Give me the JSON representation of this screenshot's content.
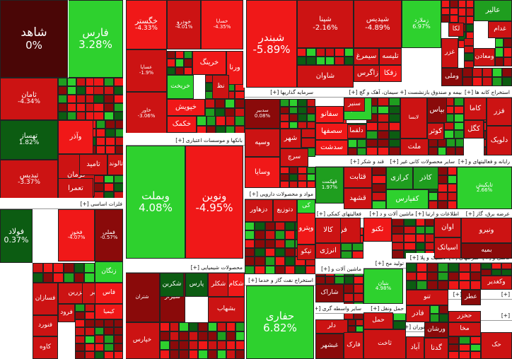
{
  "colors": {
    "bright_green": "#2ed12e",
    "green": "#1f9e1f",
    "dark_green": "#0c5c12",
    "bright_red": "#f01818",
    "red": "#cc1313",
    "dark_red": "#8a0a0a",
    "neutral": "#4a0606"
  },
  "sections": [
    {
      "id": "s-financial",
      "title": "فلزات اساسی [+]",
      "subs": []
    },
    {
      "id": "s-banks",
      "title": "بانکها و موسسات اعتباری [+]"
    },
    {
      "id": "s-chemical",
      "title": "محصولات شیمیایی [+]"
    },
    {
      "id": "s-invest",
      "title": "سرمایه گذاریها [+]"
    },
    {
      "id": "s-pharma",
      "title": "مواد و محصولات دارویی [+]"
    },
    {
      "id": "s-oil",
      "title": "استخراج نفت گاز و خدما [+]"
    },
    {
      "id": "s-cement",
      "title": "سیمان، آهک و گچ [+]"
    },
    {
      "id": "s-etf",
      "title": "بیمه و صندوق بازنشست [+]"
    },
    {
      "id": "s-mining",
      "title": "استخراج کانه ها [+]"
    },
    {
      "id": "s-sugar",
      "title": "قند و شکر [+]"
    },
    {
      "id": "s-nonmetal",
      "title": "سایر محصولات کانی غیر [+]"
    },
    {
      "id": "s-realestate",
      "title": "رایانه و فعالیتهای و [+]"
    },
    {
      "id": "s-machinery",
      "title": "فعالیتهای کمکی [+]"
    },
    {
      "id": "s-machine2",
      "title": "ماشین آلات و د [+]"
    },
    {
      "id": "s-telecom",
      "title": "اطلاعات و ارتبا [+]"
    },
    {
      "id": "s-power",
      "title": "عرضه برق، گاز [+]"
    },
    {
      "id": "s-food",
      "title": "تولید مح [+]"
    },
    {
      "id": "s-machine3",
      "title": "ماشین آلات و [+]"
    },
    {
      "id": "s-plastic",
      "title": "لاستیک و پلا [+]"
    },
    {
      "id": "s-multi",
      "title": "شرکتهای [+]"
    },
    {
      "id": "s-kashi",
      "title": "کاشی و [+]"
    },
    {
      "id": "s-transport",
      "title": "حمل ونقل [+]"
    },
    {
      "id": "s-construct",
      "title": "ساخت مح [+]"
    },
    {
      "id": "s-product",
      "title": "محصولا [+]"
    },
    {
      "id": "s-other",
      "title": "سایر واسطه گری [+]"
    },
    {
      "id": "s-hotel",
      "title": "هتل و رستوران [+]"
    },
    {
      "id": "s-extract2",
      "title": "استخرا [+]"
    },
    {
      "id": "s-p1",
      "title": "[+]"
    },
    {
      "id": "s-p2",
      "title": "[+]"
    },
    {
      "id": "s-p3",
      "title": "[+]"
    }
  ],
  "tiles": [
    {
      "name": "شاهد",
      "pct": "0%"
    },
    {
      "name": "فارس",
      "pct": "3.28%"
    },
    {
      "name": "ثامان",
      "pct": "-4.34%"
    },
    {
      "name": "تهساز",
      "pct": "1.82%"
    },
    {
      "name": "تبدیس",
      "pct": "-3.37%"
    },
    {
      "name": "فولاد",
      "pct": "0.37%"
    },
    {
      "name": "خگستر",
      "pct": "-4.33%"
    },
    {
      "name": "خودرو",
      "pct": "-4.01%"
    },
    {
      "name": "خساپا",
      "pct": "-4.35%"
    },
    {
      "name": "شبندر",
      "pct": "-5.89%"
    },
    {
      "name": "شپنا",
      "pct": "-2.16%"
    },
    {
      "name": "شپدیس",
      "pct": "-4.89%"
    },
    {
      "name": "زملارد",
      "pct": "6.97%"
    },
    {
      "name": "وبملت",
      "pct": "4.08%"
    },
    {
      "name": "ونوین",
      "pct": "-4.95%"
    },
    {
      "name": "حفاری",
      "pct": "6.82%"
    },
    {
      "name": "شتران",
      "pct": ""
    },
    {
      "name": "شیراز",
      "pct": ""
    },
    {
      "name": "شکربن",
      "pct": ""
    },
    {
      "name": "بوعلی",
      "pct": ""
    },
    {
      "name": "شکلر",
      "pct": ""
    },
    {
      "name": "فملی",
      "pct": "-0.57%"
    },
    {
      "name": "فخوز",
      "pct": "-4.07%"
    },
    {
      "name": "زنگان",
      "pct": ""
    },
    {
      "name": "فزرین",
      "pct": ""
    },
    {
      "name": "کویر",
      "pct": ""
    },
    {
      "name": "فاس",
      "pct": ""
    },
    {
      "name": "کیمیا",
      "pct": ""
    },
    {
      "name": "فسازان",
      "pct": ""
    },
    {
      "name": "فرود",
      "pct": ""
    },
    {
      "name": "فنورد",
      "pct": ""
    },
    {
      "name": "کاوه",
      "pct": ""
    },
    {
      "name": "وآذر",
      "pct": ""
    },
    {
      "name": "کرمان",
      "pct": ""
    },
    {
      "name": "تامید",
      "pct": ""
    },
    {
      "name": "تالوند",
      "pct": ""
    },
    {
      "name": "تعمرا",
      "pct": ""
    },
    {
      "name": "ورنا",
      "pct": ""
    },
    {
      "name": "خرینگ",
      "pct": ""
    },
    {
      "name": "خریخت",
      "pct": ""
    },
    {
      "name": "خپویش",
      "pct": ""
    },
    {
      "name": "خکمک",
      "pct": ""
    },
    {
      "name": "خاور",
      "pct": "-3.06%"
    },
    {
      "name": "عساپا",
      "pct": "-1.9%"
    },
    {
      "name": "سیمرغ",
      "pct": ""
    },
    {
      "name": "تلیسه",
      "pct": ""
    },
    {
      "name": "زاگرس",
      "pct": ""
    },
    {
      "name": "زفکا",
      "pct": ""
    },
    {
      "name": "شاوان",
      "pct": ""
    },
    {
      "name": "وسپه",
      "pct": ""
    },
    {
      "name": "سدبیر",
      "pct": "0.08%"
    },
    {
      "name": "شهر",
      "pct": ""
    },
    {
      "name": "وسایا",
      "pct": ""
    },
    {
      "name": "وپترو",
      "pct": ""
    },
    {
      "name": "تپکو",
      "pct": ""
    },
    {
      "name": "شفارس",
      "pct": ""
    },
    {
      "name": "دلقما",
      "pct": ""
    },
    {
      "name": "سفانو",
      "pct": ""
    },
    {
      "name": "سلام",
      "pct": ""
    },
    {
      "name": "سصفها",
      "pct": ""
    },
    {
      "name": "سنیر",
      "pct": ""
    },
    {
      "name": "سدشت",
      "pct": ""
    },
    {
      "name": "بپاس",
      "pct": ""
    },
    {
      "name": "کوثر",
      "pct": ""
    },
    {
      "name": "ملت",
      "pct": ""
    },
    {
      "name": "کاما",
      "pct": ""
    },
    {
      "name": "کگل",
      "pct": ""
    },
    {
      "name": "فزر",
      "pct": ""
    },
    {
      "name": "دلویک",
      "pct": ""
    },
    {
      "name": "قثابت",
      "pct": ""
    },
    {
      "name": "قهکمت",
      "pct": "1.97%"
    },
    {
      "name": "قشهد",
      "pct": ""
    },
    {
      "name": "کرازی",
      "pct": ""
    },
    {
      "name": "کفپارس",
      "pct": ""
    },
    {
      "name": "کاذر",
      "pct": ""
    },
    {
      "name": "تاپکیش",
      "pct": "2.66%"
    },
    {
      "name": "فرابور",
      "pct": ""
    },
    {
      "name": "کالا",
      "pct": ""
    },
    {
      "name": "انرژی",
      "pct": ""
    },
    {
      "name": "تکنو",
      "pct": ""
    },
    {
      "name": "اوان",
      "pct": ""
    },
    {
      "name": "اسیاتک",
      "pct": ""
    },
    {
      "name": "ونیرو",
      "pct": ""
    },
    {
      "name": "بنیان",
      "pct": "4.98%"
    },
    {
      "name": "حمل",
      "pct": ""
    },
    {
      "name": "فادر",
      "pct": ""
    },
    {
      "name": "آباد",
      "pct": ""
    },
    {
      "name": "ورشان",
      "pct": ""
    },
    {
      "name": "گدنا",
      "pct": ""
    },
    {
      "name": "دلر",
      "pct": ""
    },
    {
      "name": "دزهاور",
      "pct": ""
    },
    {
      "name": "دتوزیع",
      "pct": ""
    },
    {
      "name": "پکی",
      "pct": ""
    },
    {
      "name": "کی",
      "pct": ""
    },
    {
      "name": "نظ",
      "pct": ""
    },
    {
      "name": "سرچ",
      "pct": ""
    },
    {
      "name": "لابسا",
      "pct": ""
    },
    {
      "name": "بمیه",
      "pct": ""
    },
    {
      "name": "لکا",
      "pct": ""
    },
    {
      "name": "حخزر",
      "pct": ""
    },
    {
      "name": "مخا",
      "pct": ""
    },
    {
      "name": "عالیر",
      "pct": ""
    },
    {
      "name": "غدام",
      "pct": ""
    },
    {
      "name": "غزر",
      "pct": ""
    },
    {
      "name": "وملی",
      "pct": ""
    },
    {
      "name": "ومعادن",
      "pct": ""
    },
    {
      "name": "شکام",
      "pct": ""
    },
    {
      "name": "پارس",
      "pct": ""
    },
    {
      "name": "شاراک",
      "pct": ""
    },
    {
      "name": "فارک",
      "pct": ""
    },
    {
      "name": "غبشهر",
      "pct": ""
    },
    {
      "name": "عطر",
      "pct": ""
    },
    {
      "name": "حک",
      "pct": ""
    },
    {
      "name": "وکغدیر",
      "pct": ""
    },
    {
      "name": "ثاخت",
      "pct": ""
    },
    {
      "name": "خپارس",
      "pct": ""
    },
    {
      "name": "تنو",
      "pct": ""
    },
    {
      "name": "بشهاب",
      "pct": ""
    }
  ]
}
